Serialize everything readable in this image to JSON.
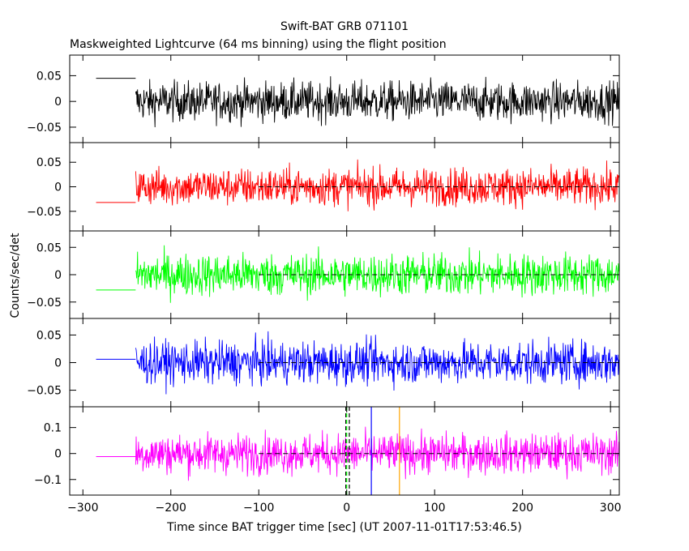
{
  "chart_data": {
    "type": "line",
    "title": "Swift-BAT GRB 071101",
    "subtitle": "Maskweighted Lightcurve (64 ms binning) using the flight position",
    "xlabel": "Time since BAT trigger time [sec] (UT 2007-11-01T17:53:46.5)",
    "ylabel": "Counts/sec/det",
    "xlim": [
      -315,
      310
    ],
    "xticks": [
      -300,
      -200,
      -100,
      0,
      100,
      200,
      300
    ],
    "data_start": -240,
    "grid": false,
    "legend": "none",
    "series": [
      {
        "color": "#000000",
        "ylim": [
          -0.08,
          0.09
        ],
        "yticks": [
          -0.05,
          0,
          0.05
        ],
        "amplitude": 0.045,
        "pre_level": 0.045,
        "baseline_from": null
      },
      {
        "color": "#ff0000",
        "ylim": [
          -0.09,
          0.09
        ],
        "yticks": [
          -0.05,
          0,
          0.05
        ],
        "amplitude": 0.045,
        "pre_level": -0.032,
        "baseline_from": -100
      },
      {
        "color": "#00ff00",
        "ylim": [
          -0.08,
          0.08
        ],
        "yticks": [
          -0.05,
          0,
          0.05
        ],
        "amplitude": 0.045,
        "pre_level": -0.028,
        "baseline_from": -100
      },
      {
        "color": "#0000ff",
        "ylim": [
          -0.08,
          0.08
        ],
        "yticks": [
          -0.05,
          0,
          0.05
        ],
        "amplitude": 0.045,
        "pre_level": 0.006,
        "baseline_from": -100
      },
      {
        "color": "#ff00ff",
        "ylim": [
          -0.16,
          0.18
        ],
        "yticks": [
          -0.1,
          0,
          0.1
        ],
        "amplitude": 0.09,
        "pre_level": -0.012,
        "baseline_from": -100
      }
    ],
    "markers": [
      {
        "x": -1,
        "color": "#000000",
        "dash": true
      },
      {
        "x": 0,
        "color": "#00ff00",
        "dash": true
      },
      {
        "x": 3,
        "color": "#000000",
        "dash": true
      },
      {
        "x": 28,
        "color": "#0000ff",
        "dash": false
      },
      {
        "x": 60,
        "color": "#ffa500",
        "dash": false
      }
    ]
  }
}
